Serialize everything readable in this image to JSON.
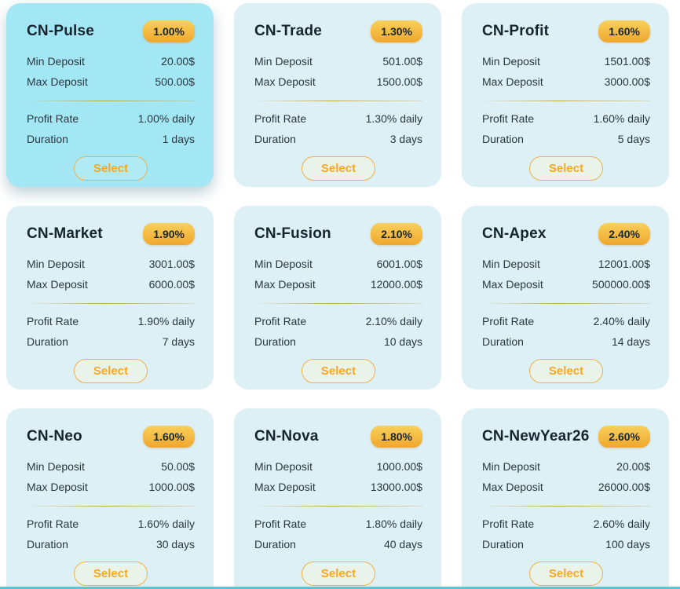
{
  "labels": {
    "min_deposit": "Min Deposit",
    "max_deposit": "Max Deposit",
    "profit_rate": "Profit Rate",
    "duration": "Duration",
    "select": "Select"
  },
  "colors": {
    "featured_card_bg": "#a4e7f4",
    "card_bg": "#ddf0f5",
    "badge_gradient_top": "#f8d05a",
    "badge_gradient_bottom": "#f0a72e",
    "accent_gold": "#f7a823",
    "footer_teal": "#5ec3d3"
  },
  "plans": [
    {
      "name": "CN-Pulse",
      "rate": "1.00%",
      "min": "20.00$",
      "max": "500.00$",
      "profit": "1.00% daily",
      "duration": "1 days",
      "featured": true
    },
    {
      "name": "CN-Trade",
      "rate": "1.30%",
      "min": "501.00$",
      "max": "1500.00$",
      "profit": "1.30% daily",
      "duration": "3 days",
      "featured": false
    },
    {
      "name": "CN-Profit",
      "rate": "1.60%",
      "min": "1501.00$",
      "max": "3000.00$",
      "profit": "1.60% daily",
      "duration": "5 days",
      "featured": false
    },
    {
      "name": "CN-Market",
      "rate": "1.90%",
      "min": "3001.00$",
      "max": "6000.00$",
      "profit": "1.90% daily",
      "duration": "7 days",
      "featured": false
    },
    {
      "name": "CN-Fusion",
      "rate": "2.10%",
      "min": "6001.00$",
      "max": "12000.00$",
      "profit": "2.10% daily",
      "duration": "10 days",
      "featured": false
    },
    {
      "name": "CN-Apex",
      "rate": "2.40%",
      "min": "12001.00$",
      "max": "500000.00$",
      "profit": "2.40% daily",
      "duration": "14 days",
      "featured": false
    },
    {
      "name": "CN-Neo",
      "rate": "1.60%",
      "min": "50.00$",
      "max": "1000.00$",
      "profit": "1.60% daily",
      "duration": "30 days",
      "featured": false
    },
    {
      "name": "CN-Nova",
      "rate": "1.80%",
      "min": "1000.00$",
      "max": "13000.00$",
      "profit": "1.80% daily",
      "duration": "40 days",
      "featured": false
    },
    {
      "name": "CN-NewYear26",
      "rate": "2.60%",
      "min": "20.00$",
      "max": "26000.00$",
      "profit": "2.60% daily",
      "duration": "100 days",
      "featured": false
    }
  ]
}
